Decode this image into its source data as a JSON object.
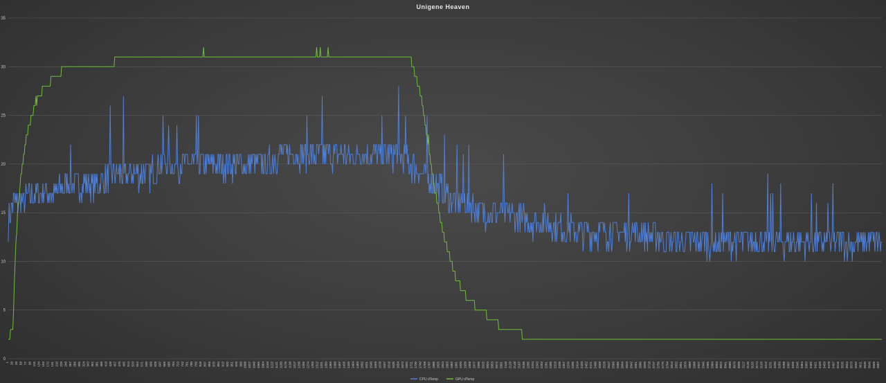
{
  "chart_data": {
    "type": "line",
    "title": "Unigene Heaven",
    "ylim": [
      0,
      35
    ],
    "yticks": [
      "0",
      "5",
      "10",
      "15",
      "20",
      "25",
      "30",
      "35"
    ],
    "xlim": [
      1,
      3698
    ],
    "xticks_every": 19,
    "grid": "horizontal",
    "legend_position": "bottom",
    "series": [
      {
        "name": "CPU dTemp",
        "color": "#4f7fd6",
        "x": [
          1,
          20,
          60,
          100,
          150,
          200,
          250,
          300,
          350,
          400,
          450,
          500,
          550,
          600,
          650,
          700,
          750,
          800,
          850,
          900,
          950,
          1000,
          1050,
          1100,
          1150,
          1200,
          1250,
          1300,
          1350,
          1400,
          1450,
          1500,
          1550,
          1600,
          1650,
          1700,
          1750,
          1800,
          1850,
          1900,
          1950,
          2000,
          2050,
          2100,
          2200,
          2300,
          2400,
          2500,
          2600,
          2700,
          2800,
          2900,
          3000,
          3100,
          3200,
          3300,
          3400,
          3500,
          3600,
          3698
        ],
        "y": [
          14,
          16,
          16,
          17,
          17,
          17,
          18,
          18,
          18,
          18,
          19,
          19,
          19,
          19,
          20,
          20,
          20,
          20,
          20,
          20,
          20,
          20,
          20,
          20,
          21,
          21,
          21,
          21,
          21,
          21,
          21,
          21,
          21,
          21,
          21,
          20,
          19,
          18,
          17,
          16,
          16,
          15,
          15,
          15,
          14,
          14,
          13,
          13,
          13,
          13,
          12,
          12,
          12,
          12,
          12,
          12,
          12,
          12,
          12,
          12
        ]
      },
      {
        "name": "GPU dTemp",
        "color": "#6fbf3a",
        "x": [
          1,
          20,
          30,
          40,
          60,
          80,
          100,
          130,
          160,
          200,
          250,
          300,
          350,
          400,
          500,
          600,
          700,
          800,
          900,
          1000,
          1100,
          1200,
          1300,
          1400,
          1500,
          1600,
          1700,
          1750,
          1800,
          1850,
          1900,
          1950,
          2000,
          2050,
          2100,
          2150,
          2200,
          2300,
          2400,
          2500,
          2600,
          2700,
          2800,
          2900,
          3000,
          3100,
          3200,
          3300,
          3400,
          3500,
          3600,
          3698
        ],
        "y": [
          2,
          3,
          10,
          15,
          20,
          23,
          25,
          27,
          28,
          29,
          30,
          30,
          30,
          30,
          31,
          31,
          31,
          31,
          31,
          31,
          31,
          31,
          31,
          31,
          31,
          31,
          31,
          27,
          18,
          12,
          8,
          6,
          5,
          4,
          3,
          3,
          2,
          2,
          2,
          2,
          2,
          2,
          2,
          2,
          2,
          2,
          2,
          2,
          2,
          2,
          2,
          2
        ]
      }
    ]
  }
}
